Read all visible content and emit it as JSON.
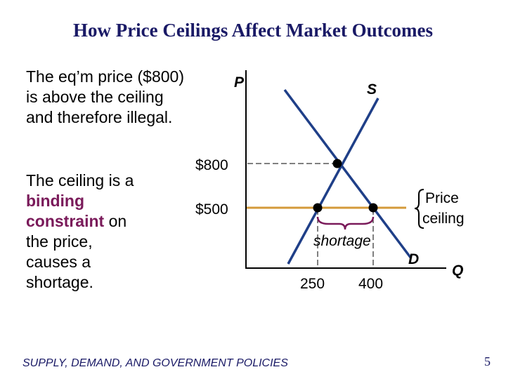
{
  "slide": {
    "title": "How Price Ceilings Affect Market Outcomes",
    "para1": "The eq’m price ($800) is above the ceiling and therefore illegal.",
    "para2_a": "The ceiling is a ",
    "para2_b": "binding constraint",
    "para2_c": " on the price, causes a shortage.",
    "footer": "SUPPLY, DEMAND, AND GOVERNMENT POLICIES",
    "page_number": "5"
  },
  "graph": {
    "axis_p": "P",
    "axis_q": "Q",
    "supply_label": "S",
    "demand_label": "D",
    "price_eq_label": "$800",
    "price_ceiling_label": "$500",
    "ceiling_caption_line1": "Price",
    "ceiling_caption_line2": "ceiling",
    "shortage_label": "shortage",
    "qty_supplied_label": "250",
    "qty_demanded_label": "400"
  },
  "colors": {
    "title": "#1a1a66",
    "curves": "#1f3f88",
    "ceiling_line": "#d49a3a",
    "highlight": "#7a1a5a"
  }
}
